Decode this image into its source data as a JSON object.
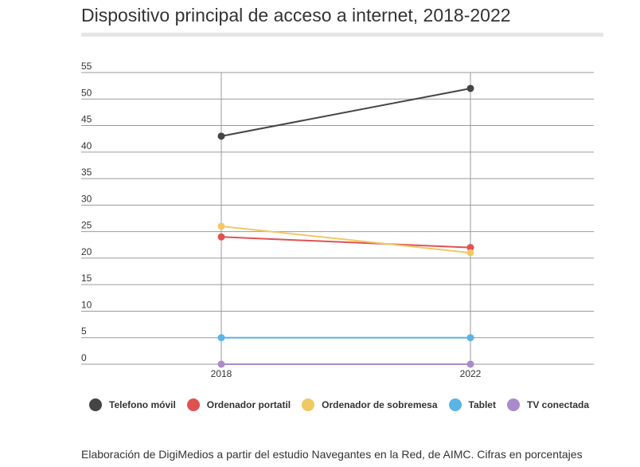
{
  "chart_data": {
    "type": "line",
    "title": "Dispositivo principal de acceso a internet, 2018-2022",
    "xlabel": "",
    "ylabel": "",
    "categories": [
      "2018",
      "2022"
    ],
    "ylim": [
      0,
      55
    ],
    "yticks": [
      0,
      5,
      10,
      15,
      20,
      25,
      30,
      35,
      40,
      45,
      50,
      55
    ],
    "grid": true,
    "legend_position": "bottom",
    "series": [
      {
        "name": "Telefono móvil",
        "color": "#444444",
        "values": [
          43,
          52
        ]
      },
      {
        "name": "Ordenador portatil",
        "color": "#e05252",
        "values": [
          24,
          22
        ]
      },
      {
        "name": "Ordenador de sobremesa",
        "color": "#f0c865",
        "values": [
          26,
          21
        ]
      },
      {
        "name": "Tablet",
        "color": "#5ab4e5",
        "values": [
          5,
          5
        ]
      },
      {
        "name": "TV conectada",
        "color": "#a98bcb",
        "values": [
          0,
          0
        ]
      }
    ]
  },
  "footnote": "Elaboración de DigiMedios a partir del estudio Navegantes en la Red, de AIMC. Cifras en porcentajes"
}
